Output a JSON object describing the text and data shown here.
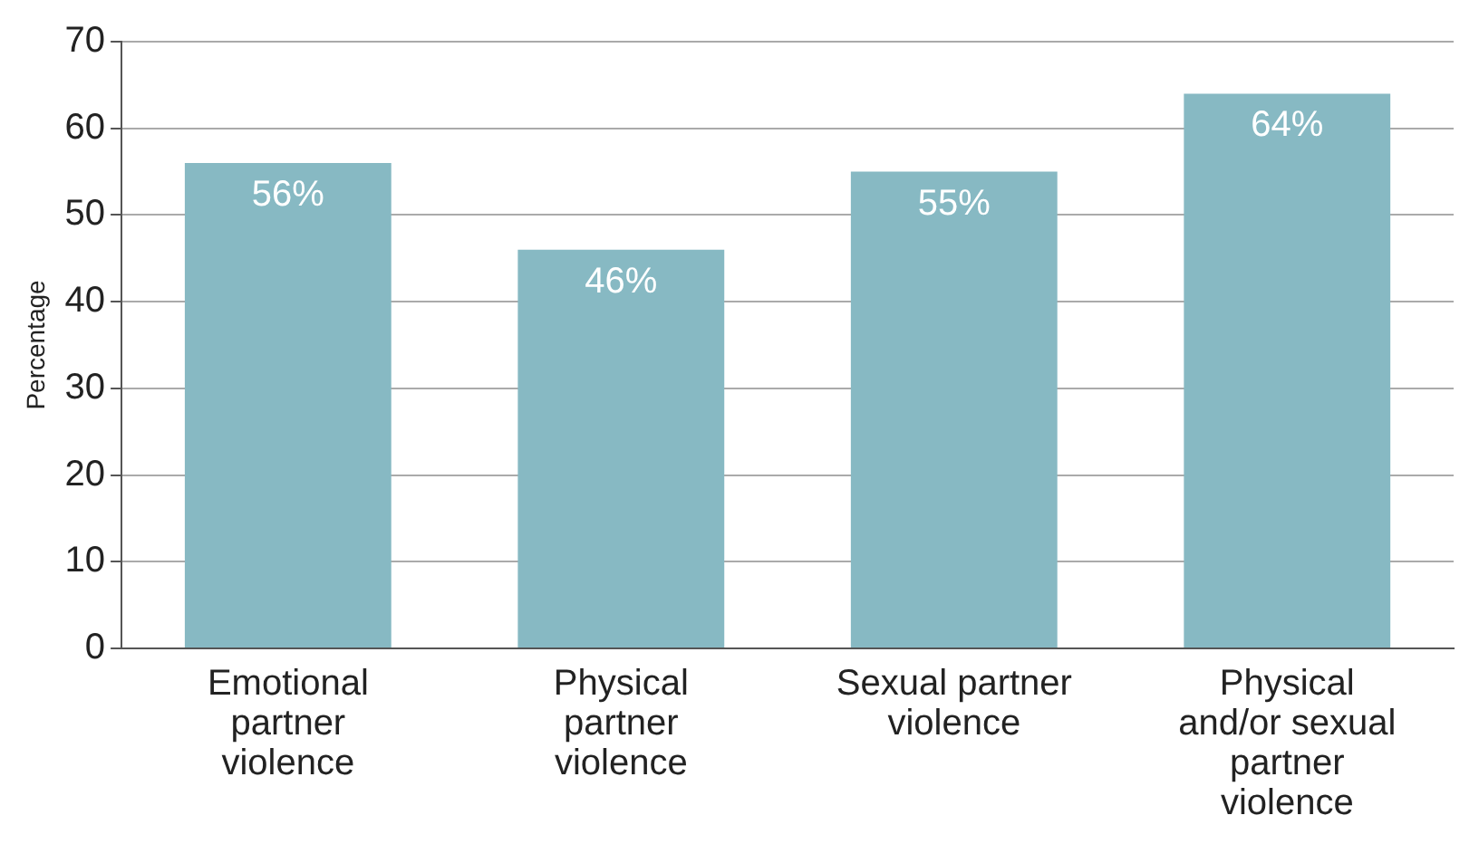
{
  "chart_data": {
    "type": "bar",
    "ylabel": "Percentage",
    "categories": [
      "Emotional partner violence",
      "Physical partner violence",
      "Sexual partner violence",
      "Physical and/or sexual partner violence"
    ],
    "values": [
      56,
      46,
      55,
      64
    ],
    "value_labels": [
      "56%",
      "46%",
      "55%",
      "64%"
    ],
    "color": "#87b9c3",
    "ylim": [
      0,
      70
    ],
    "yticks": [
      0,
      10,
      20,
      30,
      40,
      50,
      60,
      70
    ],
    "grid": "y",
    "legend": false
  }
}
